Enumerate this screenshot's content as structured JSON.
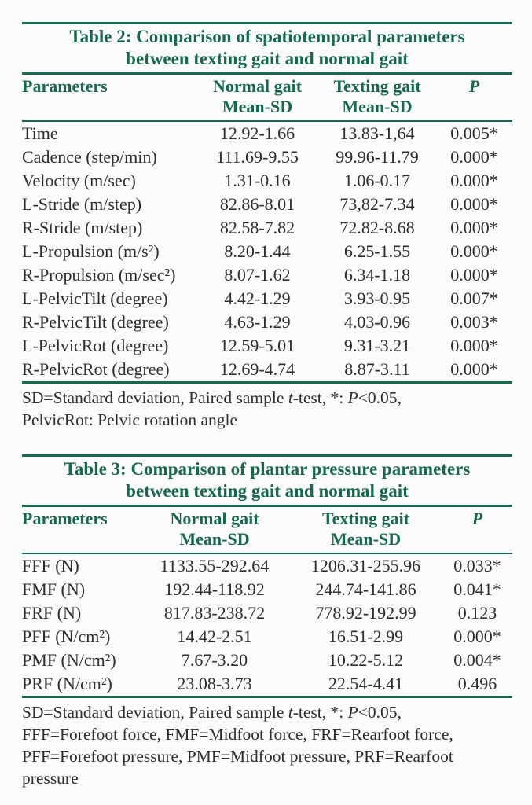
{
  "colors": {
    "accent_green": "#17694b",
    "text": "#2d2d2d",
    "paper_background": "#fbfbf9"
  },
  "table2": {
    "title_line1": "Table 2: Comparison of spatiotemporal parameters",
    "title_line2": "between texting gait and normal gait",
    "columns": [
      "Parameters",
      "Normal gait",
      "Texting gait",
      "P"
    ],
    "mean_sd_label": "Mean-SD",
    "rows": [
      [
        "Time",
        "12.92-1.66",
        "13.83-1,64",
        "0.005*"
      ],
      [
        "Cadence (step/min)",
        "111.69-9.55",
        "99.96-11.79",
        "0.000*"
      ],
      [
        "Velocity (m/sec)",
        "1.31-0.16",
        "1.06-0.17",
        "0.000*"
      ],
      [
        "L-Stride (m/step)",
        "82.86-8.01",
        "73,82-7.34",
        "0.000*"
      ],
      [
        "R-Stride (m/step)",
        "82.58-7.82",
        "72.82-8.68",
        "0.000*"
      ],
      [
        "L-Propulsion (m/s²)",
        "8.20-1.44",
        "6.25-1.55",
        "0.000*"
      ],
      [
        "R-Propulsion (m/sec²)",
        "8.07-1.62",
        "6.34-1.18",
        "0.000*"
      ],
      [
        "L-PelvicTilt (degree)",
        "4.42-1.29",
        "3.93-0.95",
        "0.007*"
      ],
      [
        "R-PelvicTilt (degree)",
        "4.63-1.29",
        "4.03-0.96",
        "0.003*"
      ],
      [
        "L-PelvicRot (degree)",
        "12.59-5.01",
        "9.31-3.21",
        "0.000*"
      ],
      [
        "R-PelvicRot (degree)",
        "12.69-4.74",
        "8.87-3.11",
        "0.000*"
      ]
    ],
    "footnote_lines": [
      [
        {
          "t": "SD=Standard deviation, Paired sample ",
          "i": false
        },
        {
          "t": "t",
          "i": true
        },
        {
          "t": "-test, *: ",
          "i": false
        },
        {
          "t": "P",
          "i": true
        },
        {
          "t": "<0.05,",
          "i": false
        }
      ],
      [
        {
          "t": "PelvicRot: Pelvic rotation angle",
          "i": false
        }
      ]
    ]
  },
  "table3": {
    "title_line1": "Table 3: Comparison of plantar pressure parameters",
    "title_line2": "between texting gait and normal gait",
    "columns": [
      "Parameters",
      "Normal gait",
      "Texting gait",
      "P"
    ],
    "mean_sd_label": "Mean-SD",
    "rows": [
      [
        "FFF (N)",
        "1133.55-292.64",
        "1206.31-255.96",
        "0.033*"
      ],
      [
        "FMF (N)",
        "192.44-118.92",
        "244.74-141.86",
        "0.041*"
      ],
      [
        "FRF (N)",
        "817.83-238.72",
        "778.92-192.99",
        "0.123"
      ],
      [
        "PFF (N/cm²)",
        "14.42-2.51",
        "16.51-2.99",
        "0.000*"
      ],
      [
        "PMF (N/cm²)",
        "7.67-3.20",
        "10.22-5.12",
        "0.004*"
      ],
      [
        "PRF (N/cm²)",
        "23.08-3.73",
        "22.54-4.41",
        "0.496"
      ]
    ],
    "footnote_lines": [
      [
        {
          "t": "SD=Standard deviation, Paired sample ",
          "i": false
        },
        {
          "t": "t",
          "i": true
        },
        {
          "t": "-test, *: ",
          "i": false
        },
        {
          "t": "P",
          "i": true
        },
        {
          "t": "<0.05,",
          "i": false
        }
      ],
      [
        {
          "t": "FFF=Forefoot force, FMF=Midfoot force, FRF=Rearfoot force,",
          "i": false
        }
      ],
      [
        {
          "t": "PFF=Forefoot pressure, PMF=Midfoot pressure, PRF=Rearfoot",
          "i": false
        }
      ],
      [
        {
          "t": "pressure",
          "i": false
        }
      ]
    ]
  }
}
